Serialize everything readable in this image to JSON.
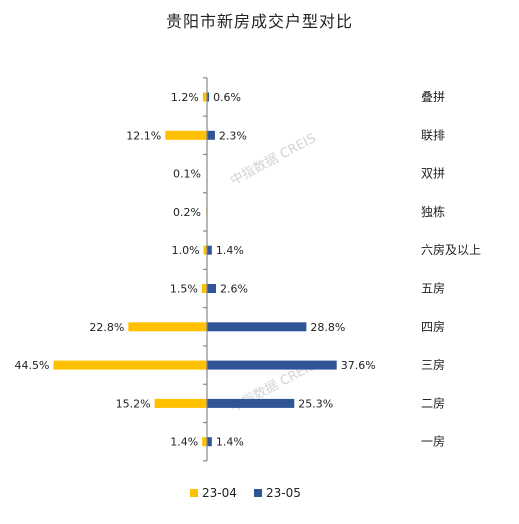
{
  "chart_data": {
    "type": "bar",
    "title": "贵阳市新房成交户型对比",
    "categories": [
      "叠拼",
      "联排",
      "双拼",
      "独栋",
      "六房及以上",
      "五房",
      "四房",
      "三房",
      "二房",
      "一房"
    ],
    "series": [
      {
        "name": "23-04",
        "color": "#FFC000",
        "values": [
          1.2,
          12.1,
          0.1,
          0.2,
          1.0,
          1.5,
          22.8,
          44.5,
          15.2,
          1.4
        ],
        "labels": [
          "1.2%",
          "12.1%",
          "0.1%",
          "0.2%",
          "1.0%",
          "1.5%",
          "22.8%",
          "44.5%",
          "15.2%",
          "1.4%"
        ]
      },
      {
        "name": "23-05",
        "color": "#2F5597",
        "values": [
          0.6,
          2.3,
          0,
          0,
          1.4,
          2.6,
          28.8,
          37.6,
          25.3,
          1.4
        ],
        "labels": [
          "0.6%",
          "2.3%",
          "",
          "",
          "1.4%",
          "2.6%",
          "28.8%",
          "37.6%",
          "25.3%",
          "1.4%"
        ]
      }
    ],
    "legend_position": "bottom",
    "grid": false
  },
  "watermark": "中指数据 CREIS"
}
